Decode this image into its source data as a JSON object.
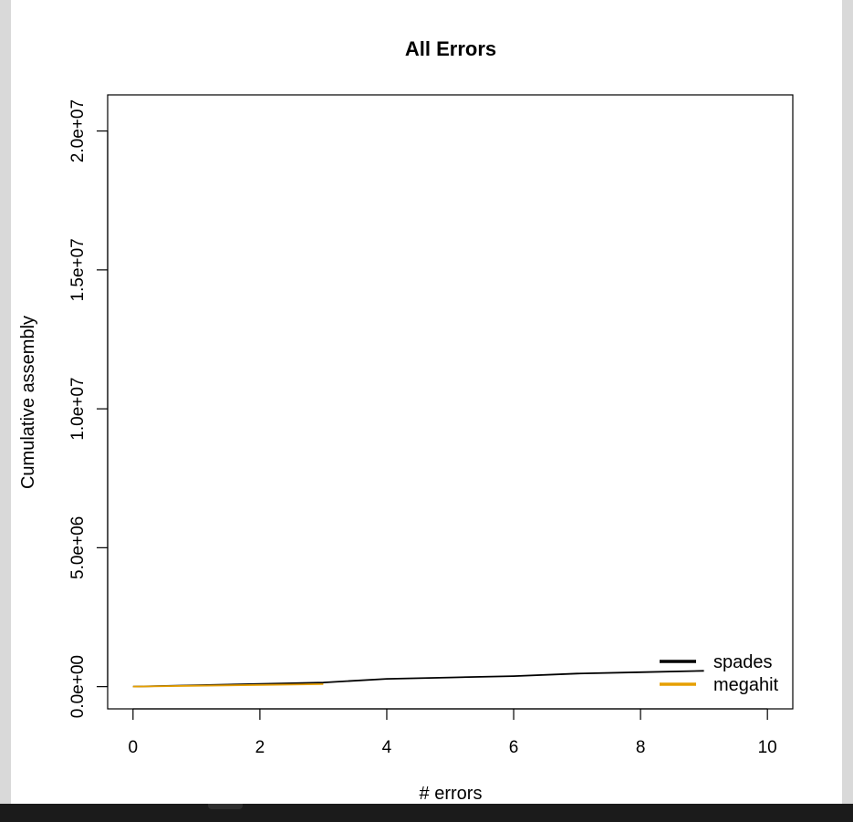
{
  "chart_data": {
    "type": "line",
    "title": "All Errors",
    "xlabel": "# errors",
    "ylabel": "Cumulative assembly",
    "xlim": [
      -0.4,
      10.4
    ],
    "ylim": [
      -800000,
      21300000
    ],
    "x_ticks": [
      0,
      2,
      4,
      6,
      8,
      10
    ],
    "x_tick_labels": [
      "0",
      "2",
      "4",
      "6",
      "8",
      "10"
    ],
    "y_ticks": [
      0,
      5000000,
      10000000,
      15000000,
      20000000
    ],
    "y_tick_labels": [
      "0.0e+00",
      "5.0e+06",
      "1.0e+07",
      "1.5e+07",
      "2.0e+07"
    ],
    "grid": false,
    "legend_position": "bottom-right",
    "series": [
      {
        "name": "spades",
        "color": "#000000",
        "x": [
          0,
          1,
          2,
          3,
          4,
          5,
          6,
          7,
          8,
          9
        ],
        "y": [
          0,
          50000,
          100000,
          150000,
          280000,
          330000,
          380000,
          470000,
          520000,
          570000
        ]
      },
      {
        "name": "megahit",
        "color": "#E69F00",
        "x": [
          0,
          1,
          2,
          3
        ],
        "y": [
          0,
          30000,
          60000,
          90000
        ]
      }
    ]
  }
}
